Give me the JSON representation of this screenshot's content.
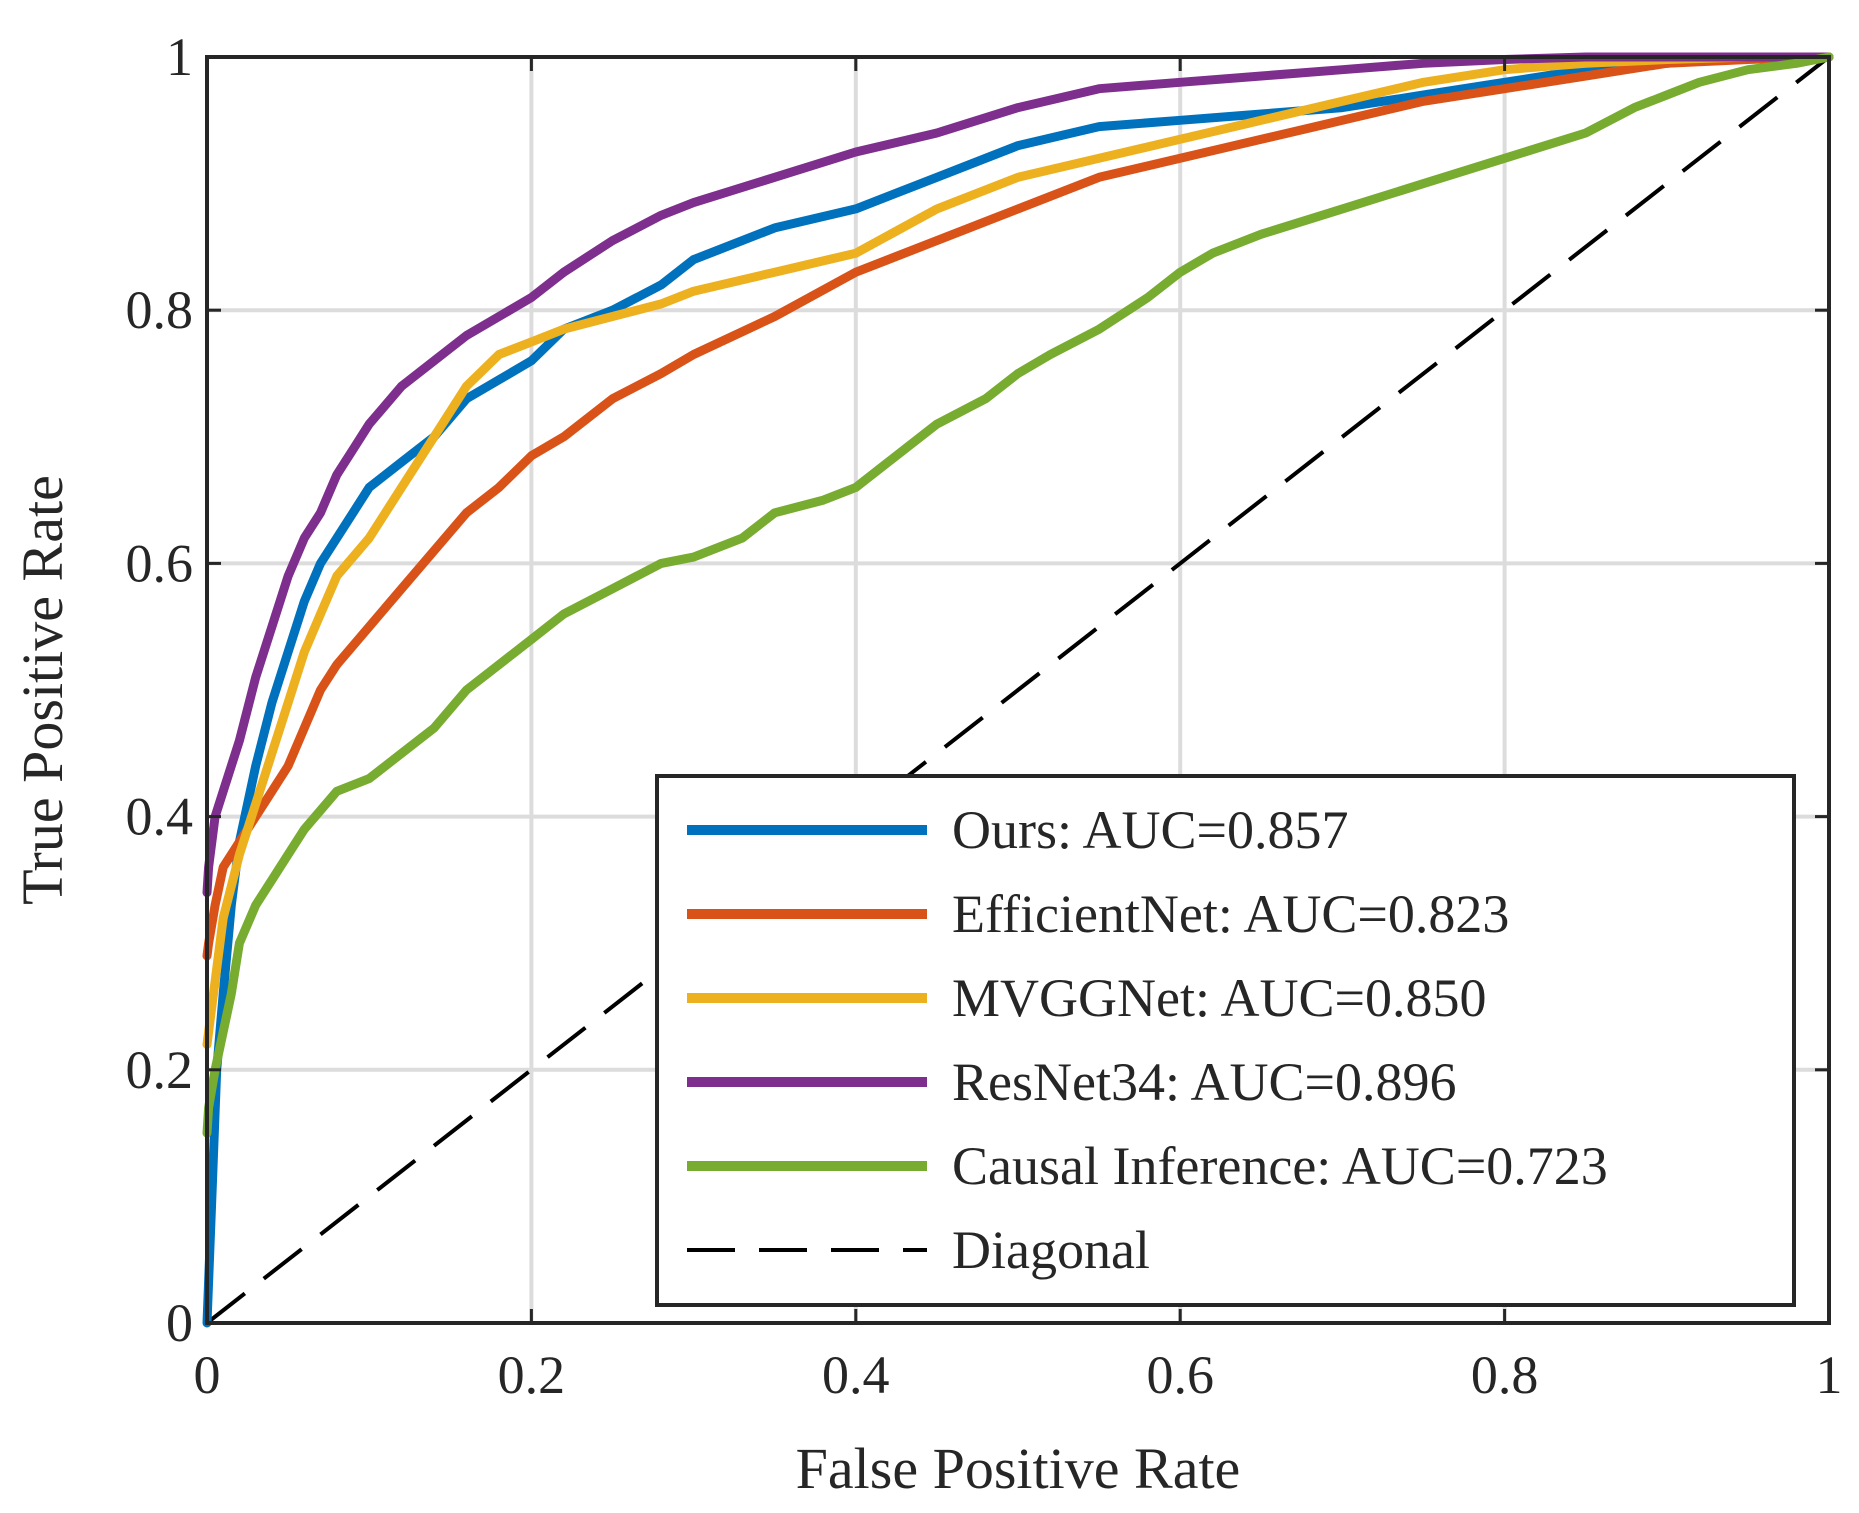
{
  "chart_data": {
    "type": "line",
    "title": "",
    "xlabel": "False Positive Rate",
    "ylabel": "True Positive Rate",
    "xlim": [
      0,
      1
    ],
    "ylim": [
      0,
      1
    ],
    "grid": true,
    "legend_position": "bottom-right",
    "xticks": [
      0,
      0.2,
      0.4,
      0.6,
      0.8,
      1
    ],
    "yticks": [
      0,
      0.2,
      0.4,
      0.6,
      0.8,
      1
    ],
    "xtick_labels": [
      "0",
      "0.2",
      "0.4",
      "0.6",
      "0.8",
      "1"
    ],
    "ytick_labels": [
      "0",
      "0.2",
      "0.4",
      "0.6",
      "0.8",
      "1"
    ],
    "series": [
      {
        "name": "Ours: AUC=0.857",
        "color": "#0072BD",
        "dashed": false,
        "x": [
          0,
          0.003,
          0.006,
          0.01,
          0.015,
          0.02,
          0.03,
          0.04,
          0.05,
          0.06,
          0.07,
          0.08,
          0.09,
          0.1,
          0.12,
          0.14,
          0.16,
          0.18,
          0.2,
          0.22,
          0.25,
          0.28,
          0.3,
          0.35,
          0.4,
          0.45,
          0.5,
          0.55,
          0.6,
          0.65,
          0.7,
          0.75,
          0.8,
          0.85,
          0.9,
          0.95,
          1.0
        ],
        "y": [
          0,
          0.1,
          0.2,
          0.26,
          0.33,
          0.38,
          0.44,
          0.49,
          0.53,
          0.57,
          0.6,
          0.62,
          0.64,
          0.66,
          0.68,
          0.7,
          0.73,
          0.745,
          0.76,
          0.785,
          0.8,
          0.82,
          0.84,
          0.865,
          0.88,
          0.905,
          0.93,
          0.945,
          0.95,
          0.955,
          0.96,
          0.97,
          0.98,
          0.99,
          0.995,
          1.0,
          1.0
        ]
      },
      {
        "name": "EfficientNet: AUC=0.823",
        "color": "#D95319",
        "dashed": false,
        "x": [
          0,
          0.001,
          0.005,
          0.01,
          0.02,
          0.03,
          0.04,
          0.05,
          0.06,
          0.07,
          0.08,
          0.1,
          0.12,
          0.14,
          0.16,
          0.18,
          0.2,
          0.22,
          0.25,
          0.28,
          0.3,
          0.35,
          0.4,
          0.45,
          0.5,
          0.55,
          0.6,
          0.65,
          0.7,
          0.75,
          0.8,
          0.85,
          0.9,
          0.95,
          1.0
        ],
        "y": [
          0.29,
          0.3,
          0.33,
          0.36,
          0.38,
          0.4,
          0.42,
          0.44,
          0.47,
          0.5,
          0.52,
          0.55,
          0.58,
          0.61,
          0.64,
          0.66,
          0.685,
          0.7,
          0.73,
          0.75,
          0.765,
          0.795,
          0.83,
          0.855,
          0.88,
          0.905,
          0.92,
          0.935,
          0.95,
          0.965,
          0.975,
          0.985,
          0.995,
          0.998,
          1.0
        ]
      },
      {
        "name": "MVGGNet: AUC=0.850",
        "color": "#EDB120",
        "dashed": false,
        "x": [
          0,
          0.001,
          0.005,
          0.01,
          0.02,
          0.03,
          0.04,
          0.05,
          0.06,
          0.07,
          0.08,
          0.1,
          0.12,
          0.14,
          0.16,
          0.18,
          0.2,
          0.22,
          0.25,
          0.28,
          0.3,
          0.35,
          0.4,
          0.45,
          0.5,
          0.55,
          0.6,
          0.65,
          0.7,
          0.75,
          0.8,
          0.85,
          0.9,
          0.95,
          1.0
        ],
        "y": [
          0.22,
          0.23,
          0.27,
          0.32,
          0.37,
          0.41,
          0.45,
          0.49,
          0.53,
          0.56,
          0.59,
          0.62,
          0.66,
          0.7,
          0.74,
          0.765,
          0.775,
          0.785,
          0.795,
          0.805,
          0.815,
          0.83,
          0.845,
          0.88,
          0.905,
          0.92,
          0.935,
          0.95,
          0.965,
          0.98,
          0.99,
          0.995,
          0.998,
          1.0,
          1.0
        ]
      },
      {
        "name": "ResNet34: AUC=0.896",
        "color": "#7E2F8E",
        "dashed": false,
        "x": [
          0,
          0.001,
          0.005,
          0.01,
          0.02,
          0.03,
          0.04,
          0.05,
          0.06,
          0.07,
          0.08,
          0.09,
          0.1,
          0.12,
          0.14,
          0.16,
          0.18,
          0.2,
          0.22,
          0.25,
          0.28,
          0.3,
          0.35,
          0.4,
          0.45,
          0.5,
          0.55,
          0.6,
          0.65,
          0.7,
          0.75,
          0.8,
          0.85,
          0.9,
          0.95,
          1.0
        ],
        "y": [
          0.34,
          0.36,
          0.4,
          0.42,
          0.46,
          0.51,
          0.55,
          0.59,
          0.62,
          0.64,
          0.67,
          0.69,
          0.71,
          0.74,
          0.76,
          0.78,
          0.795,
          0.81,
          0.83,
          0.855,
          0.875,
          0.885,
          0.905,
          0.925,
          0.94,
          0.96,
          0.975,
          0.98,
          0.985,
          0.99,
          0.995,
          0.998,
          1.0,
          1.0,
          1.0,
          1.0
        ]
      },
      {
        "name": "Causal Inference: AUC=0.723",
        "color": "#77AC30",
        "dashed": false,
        "x": [
          0,
          0.001,
          0.005,
          0.01,
          0.015,
          0.02,
          0.03,
          0.04,
          0.05,
          0.06,
          0.08,
          0.1,
          0.12,
          0.14,
          0.16,
          0.18,
          0.2,
          0.22,
          0.25,
          0.28,
          0.3,
          0.33,
          0.35,
          0.38,
          0.4,
          0.42,
          0.45,
          0.48,
          0.5,
          0.52,
          0.55,
          0.58,
          0.6,
          0.62,
          0.65,
          0.7,
          0.75,
          0.8,
          0.85,
          0.88,
          0.9,
          0.92,
          0.95,
          0.98,
          1.0
        ],
        "y": [
          0.15,
          0.17,
          0.2,
          0.23,
          0.26,
          0.3,
          0.33,
          0.35,
          0.37,
          0.39,
          0.42,
          0.43,
          0.45,
          0.47,
          0.5,
          0.52,
          0.54,
          0.56,
          0.58,
          0.6,
          0.605,
          0.62,
          0.64,
          0.65,
          0.66,
          0.68,
          0.71,
          0.73,
          0.75,
          0.765,
          0.785,
          0.81,
          0.83,
          0.845,
          0.86,
          0.88,
          0.9,
          0.92,
          0.94,
          0.96,
          0.97,
          0.98,
          0.99,
          0.995,
          1.0
        ]
      },
      {
        "name": "Diagonal",
        "color": "#000000",
        "dashed": true,
        "x": [
          0,
          1
        ],
        "y": [
          0,
          1
        ]
      }
    ]
  }
}
